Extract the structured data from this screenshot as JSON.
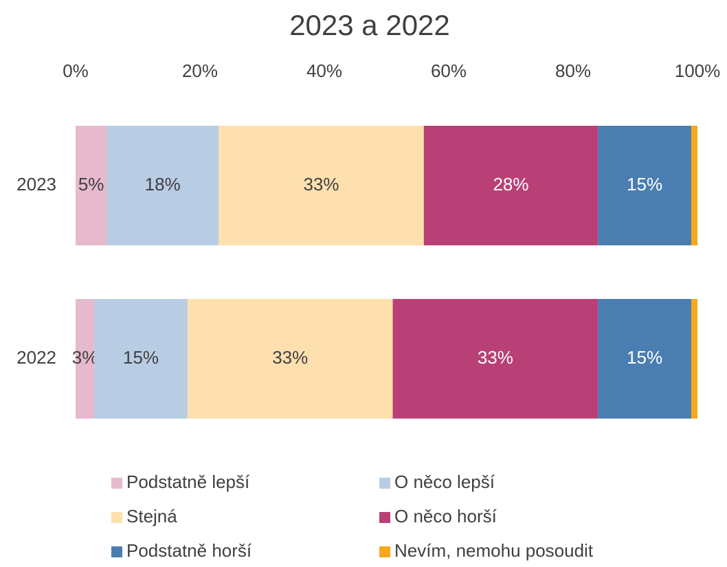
{
  "chart_data": {
    "type": "stacked-bar-horizontal",
    "title": "2023 a 2022",
    "categories": [
      "2023",
      "2022"
    ],
    "series": [
      {
        "name": "Podstatně lepší",
        "color": "#e6b9cd",
        "values": [
          5,
          3
        ],
        "value_labels": [
          "5%",
          "3%"
        ]
      },
      {
        "name": "O něco lepší",
        "color": "#b8cce4",
        "values": [
          18,
          15
        ],
        "value_labels": [
          "18%",
          "15%"
        ]
      },
      {
        "name": "Stejná",
        "color": "#fde0ad",
        "values": [
          33,
          33
        ],
        "value_labels": [
          "33%",
          "33%"
        ]
      },
      {
        "name": "O něco horší",
        "color": "#b84077",
        "values": [
          28,
          33
        ],
        "value_labels": [
          "28%",
          "33%"
        ]
      },
      {
        "name": "Podstatně horší",
        "color": "#4a7eb0",
        "values": [
          15,
          15
        ],
        "value_labels": [
          "15%",
          "15%"
        ]
      },
      {
        "name": "Nevím, nemohu posoudit",
        "color": "#f5a81c",
        "values": [
          1,
          1
        ]
      }
    ],
    "xlim": [
      0,
      100
    ],
    "xticks": [
      {
        "value": 0,
        "label": "0%"
      },
      {
        "value": 20,
        "label": "20%"
      },
      {
        "value": 40,
        "label": "40%"
      },
      {
        "value": 60,
        "label": "60%"
      },
      {
        "value": 80,
        "label": "80%"
      },
      {
        "value": 100,
        "label": "100%"
      }
    ],
    "legend": "bottom"
  }
}
